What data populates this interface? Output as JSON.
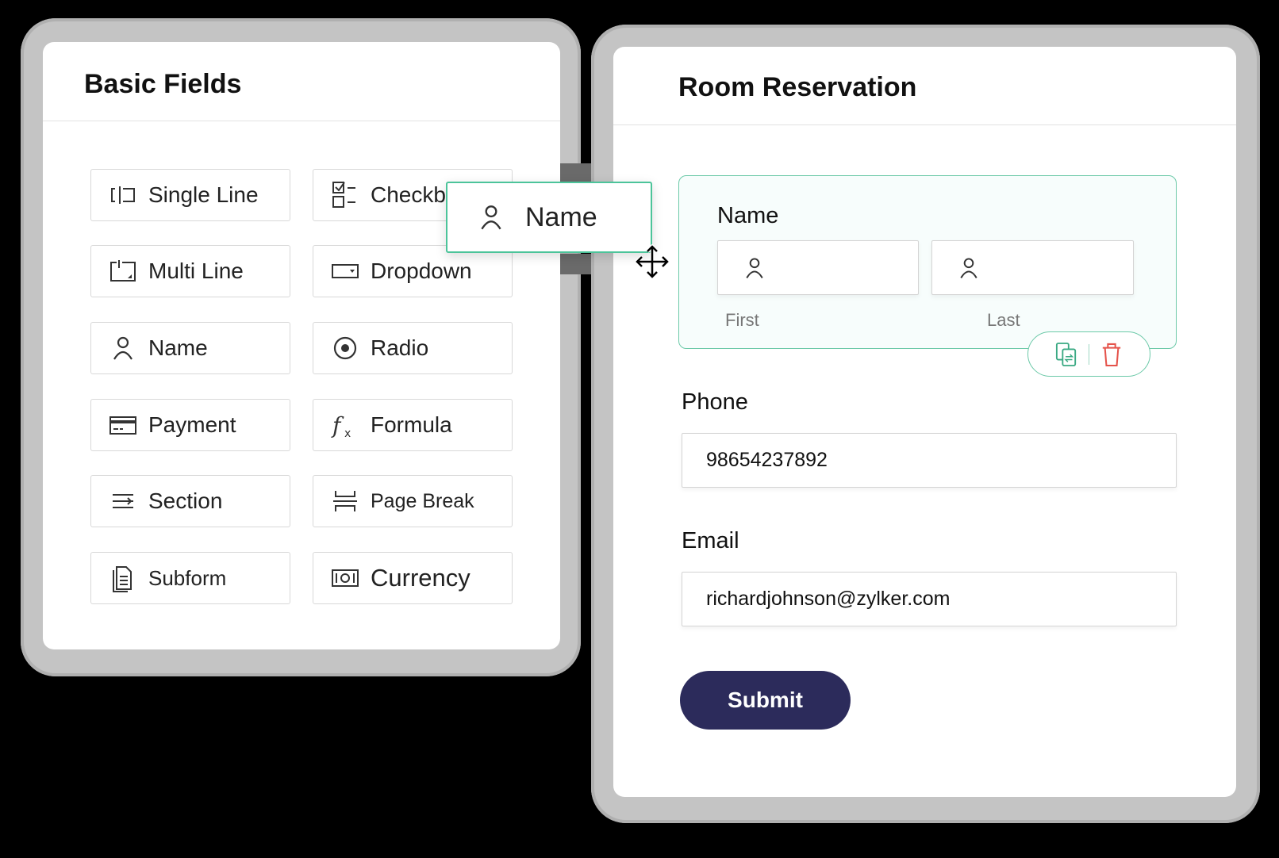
{
  "basic_fields": {
    "title": "Basic Fields",
    "items": [
      {
        "label": "Single Line",
        "icon": "single-line-icon"
      },
      {
        "label": "Checkbox",
        "icon": "checkbox-icon"
      },
      {
        "label": "Multi Line",
        "icon": "multi-line-icon"
      },
      {
        "label": "Dropdown",
        "icon": "dropdown-icon"
      },
      {
        "label": "Name",
        "icon": "person-icon"
      },
      {
        "label": "Radio",
        "icon": "radio-icon"
      },
      {
        "label": "Payment",
        "icon": "payment-card-icon"
      },
      {
        "label": "Formula",
        "icon": "formula-icon"
      },
      {
        "label": "Section",
        "icon": "section-icon"
      },
      {
        "label": "Page Break",
        "icon": "page-break-icon"
      },
      {
        "label": "Subform",
        "icon": "subform-icon"
      },
      {
        "label": "Currency",
        "icon": "currency-icon"
      }
    ],
    "checkbox_visible_label": "Checkb"
  },
  "dragging": {
    "label": "Name",
    "icon": "person-icon"
  },
  "form": {
    "title": "Room Reservation",
    "name_field": {
      "label": "Name",
      "first_label": "First",
      "last_label": "Last",
      "first_value": "",
      "last_value": ""
    },
    "phone": {
      "label": "Phone",
      "value": "98654237892"
    },
    "email": {
      "label": "Email",
      "value": "richardjohnson@zylker.com"
    },
    "submit_label": "Submit"
  },
  "colors": {
    "accent": "#4cc49a",
    "submit": "#2c2b5b",
    "delete": "#e5534b"
  }
}
